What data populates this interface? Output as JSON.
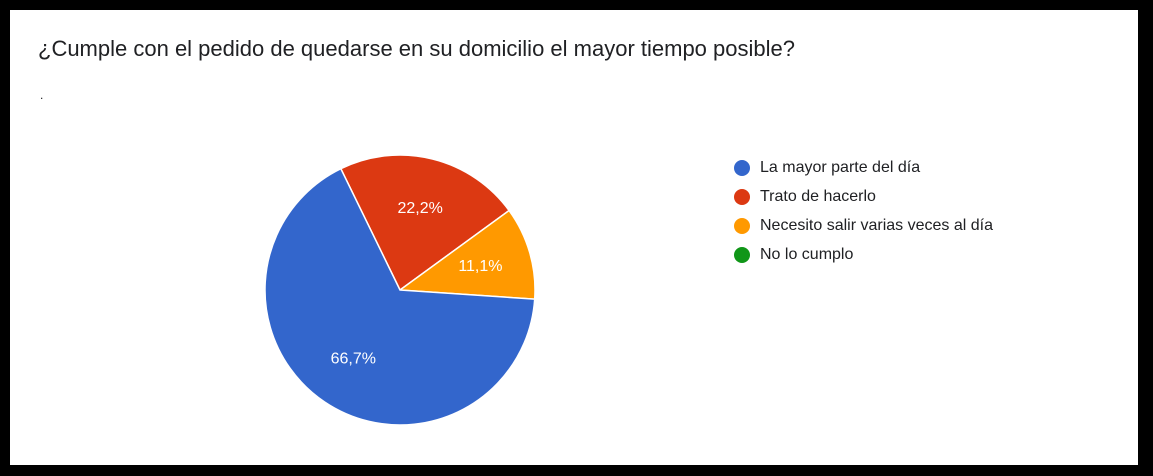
{
  "question": {
    "title": "¿Cumple con el pedido de quedarse en su domicilio el mayor tiempo posible?",
    "description": "."
  },
  "chart_data": {
    "type": "pie",
    "categories": [
      "La mayor parte del día",
      "Trato de hacerlo",
      "Necesito salir varias veces al día",
      "No lo cumplo"
    ],
    "values": [
      66.7,
      22.2,
      11.1,
      0
    ],
    "slice_labels": [
      "66,7%",
      "22,2%",
      "11,1%",
      ""
    ],
    "colors": [
      "#3366cc",
      "#dc3912",
      "#ff9900",
      "#109618"
    ],
    "legend_position": "right"
  }
}
